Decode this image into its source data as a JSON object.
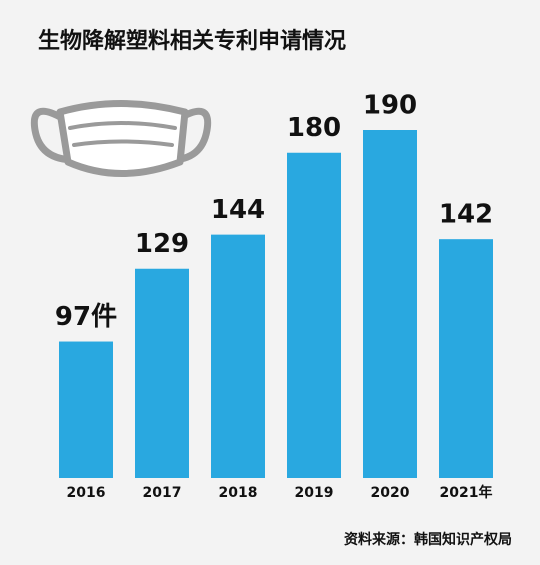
{
  "chart_data": {
    "type": "bar",
    "title": "生物降解塑料相关专利申请情况",
    "source": "资料来源：韩国知识产权局",
    "categories": [
      "2016",
      "2017",
      "2018",
      "2019",
      "2020",
      "2021年"
    ],
    "values": [
      97,
      129,
      144,
      180,
      190,
      142
    ],
    "value_labels": [
      "97件",
      "129",
      "144",
      "180",
      "190",
      "142"
    ],
    "color": "#29a8e0",
    "ylim": [
      37,
      190
    ]
  }
}
